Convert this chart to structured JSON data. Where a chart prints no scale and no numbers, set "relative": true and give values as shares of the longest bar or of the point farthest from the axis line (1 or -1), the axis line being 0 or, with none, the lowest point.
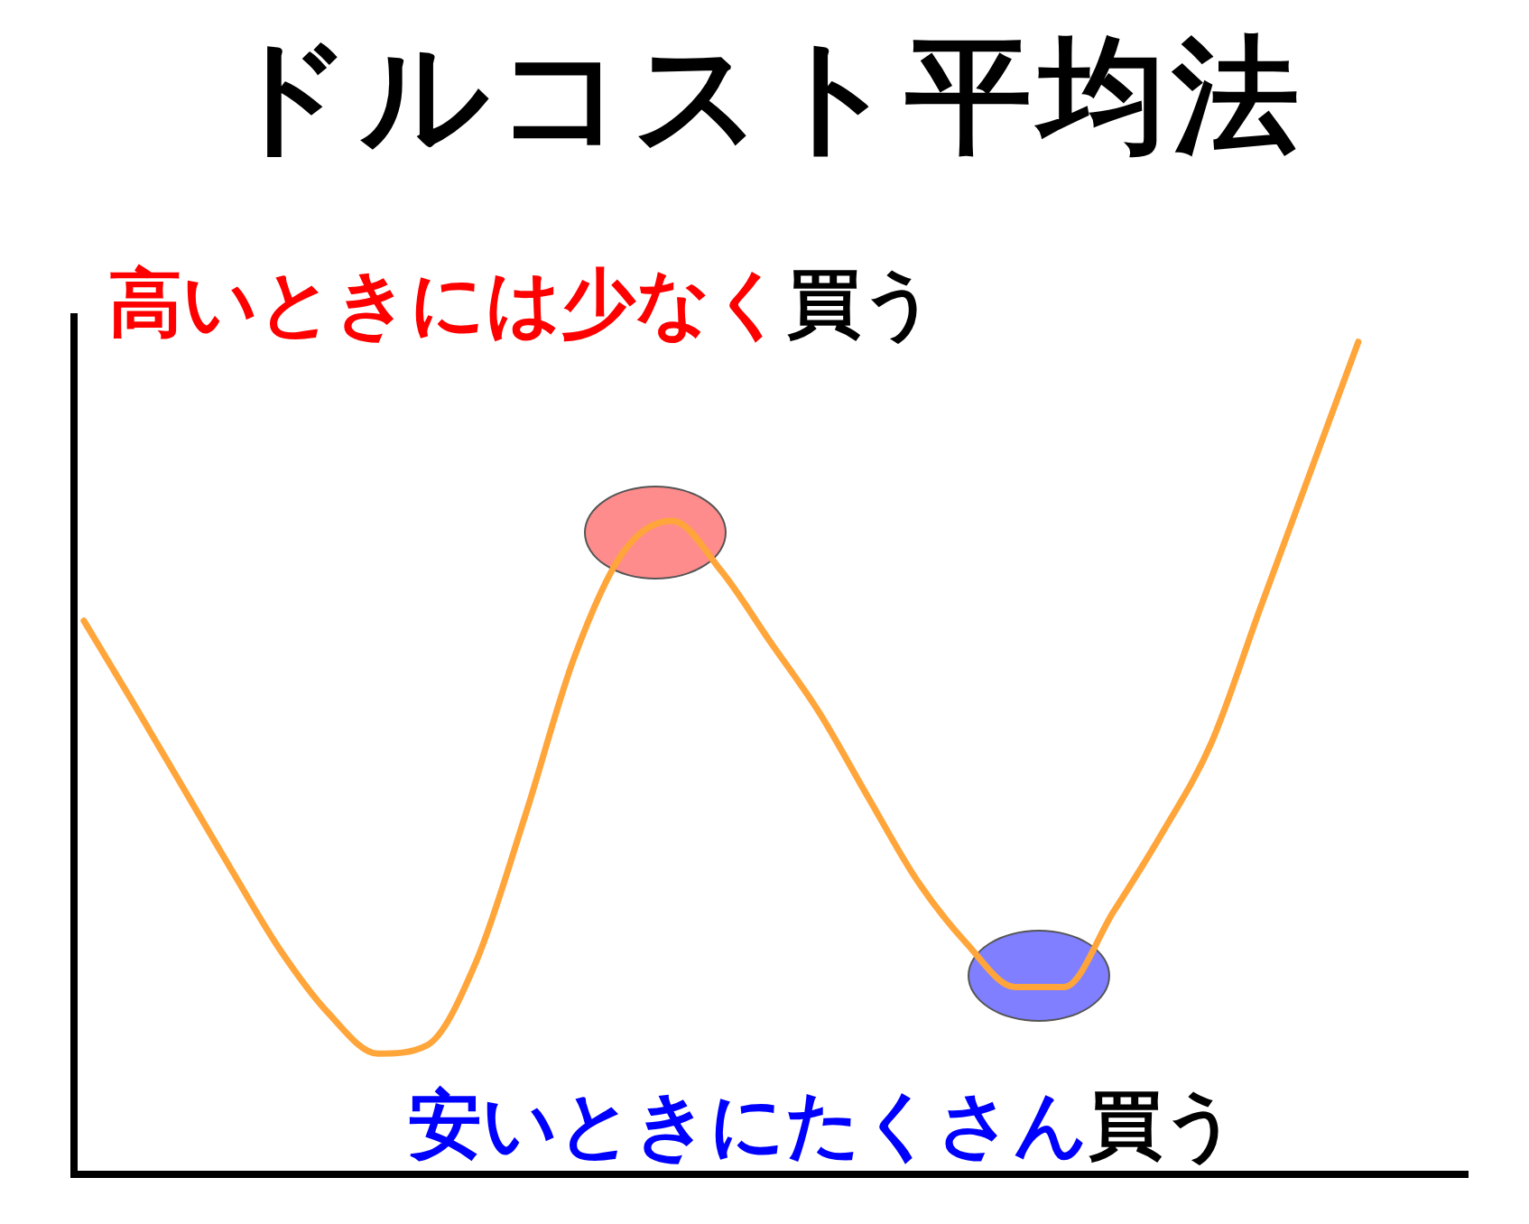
{
  "chart_data": {
    "type": "line",
    "title": "ドルコスト平均法",
    "annotations": [
      "高いときには少なく",
      "買う",
      "安いときにたくさん",
      "買う"
    ],
    "categories": [
      null,
      null,
      null,
      null,
      null,
      null,
      null,
      null,
      null,
      null,
      null,
      null,
      null,
      null,
      null,
      null,
      null,
      null,
      null,
      null,
      null,
      null,
      null,
      null,
      null,
      null,
      null
    ],
    "relative": true,
    "series": [
      {
        "color": "#ffa53a",
        "values": [
          0.665,
          0.567,
          0.467,
          0.367,
          0.27,
          0.193,
          0.145,
          0.155,
          0.255,
          0.43,
          0.62,
          0.747,
          0.785,
          0.725,
          0.64,
          0.555,
          0.453,
          0.353,
          0.278,
          0.225,
          0.225,
          0.315,
          0.41,
          0.518,
          0.68,
          0.84,
          1
        ]
      }
    ]
  }
}
